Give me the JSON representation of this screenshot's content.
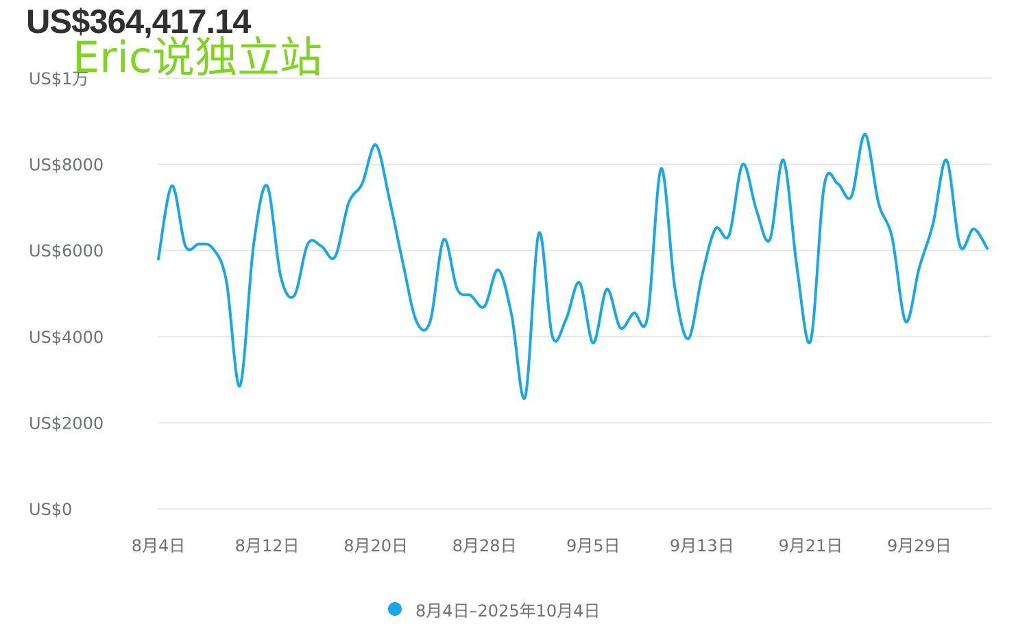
{
  "summary": {
    "total": "US$364,417.14"
  },
  "watermark": "Eric说独立站",
  "legend": {
    "label": "8月4日–2025年10月4日"
  },
  "colors": {
    "series": "#1aa7e8",
    "grid": "#e6e7e9",
    "watermark": "#7fd321",
    "text": "#6d7175"
  },
  "chart_data": {
    "type": "line",
    "title": "",
    "xlabel": "",
    "ylabel": "",
    "ylim": [
      0,
      10000
    ],
    "y_ticks": [
      {
        "value": 0,
        "label": "US$0"
      },
      {
        "value": 2000,
        "label": "US$2000"
      },
      {
        "value": 4000,
        "label": "US$4000"
      },
      {
        "value": 6000,
        "label": "US$6000"
      },
      {
        "value": 8000,
        "label": "US$8000"
      },
      {
        "value": 10000,
        "label": "US$1万"
      }
    ],
    "x_ticks": [
      {
        "index": 0,
        "label": "8月4日"
      },
      {
        "index": 8,
        "label": "8月12日"
      },
      {
        "index": 16,
        "label": "8月20日"
      },
      {
        "index": 24,
        "label": "8月28日"
      },
      {
        "index": 32,
        "label": "9月5日"
      },
      {
        "index": 40,
        "label": "9月13日"
      },
      {
        "index": 48,
        "label": "9月21日"
      },
      {
        "index": 56,
        "label": "9月29日"
      }
    ],
    "grid": true,
    "legend_position": "bottom-center",
    "series": [
      {
        "name": "8月4日–2025年10月4日",
        "x": [
          "2025-08-04",
          "2025-08-05",
          "2025-08-06",
          "2025-08-07",
          "2025-08-08",
          "2025-08-09",
          "2025-08-10",
          "2025-08-11",
          "2025-08-12",
          "2025-08-13",
          "2025-08-14",
          "2025-08-15",
          "2025-08-16",
          "2025-08-17",
          "2025-08-18",
          "2025-08-19",
          "2025-08-20",
          "2025-08-21",
          "2025-08-22",
          "2025-08-23",
          "2025-08-24",
          "2025-08-25",
          "2025-08-26",
          "2025-08-27",
          "2025-08-28",
          "2025-08-29",
          "2025-08-30",
          "2025-08-31",
          "2025-09-01",
          "2025-09-02",
          "2025-09-03",
          "2025-09-04",
          "2025-09-05",
          "2025-09-06",
          "2025-09-07",
          "2025-09-08",
          "2025-09-09",
          "2025-09-10",
          "2025-09-11",
          "2025-09-12",
          "2025-09-13",
          "2025-09-14",
          "2025-09-15",
          "2025-09-16",
          "2025-09-17",
          "2025-09-18",
          "2025-09-19",
          "2025-09-20",
          "2025-09-21",
          "2025-09-22",
          "2025-09-23",
          "2025-09-24",
          "2025-09-25",
          "2025-09-26",
          "2025-09-27",
          "2025-09-28",
          "2025-09-29",
          "2025-09-30",
          "2025-10-01",
          "2025-10-02",
          "2025-10-03",
          "2025-10-04"
        ],
        "values": [
          5800,
          7500,
          6100,
          6150,
          6050,
          5300,
          2850,
          6100,
          7500,
          5400,
          4950,
          6150,
          6100,
          5850,
          7100,
          7550,
          8450,
          7200,
          5700,
          4350,
          4350,
          6250,
          5100,
          4950,
          4700,
          5550,
          4500,
          2600,
          6400,
          4000,
          4400,
          5250,
          3850,
          5100,
          4200,
          4550,
          4450,
          7900,
          5150,
          3950,
          5400,
          6500,
          6350,
          8000,
          6950,
          6250,
          8100,
          5600,
          3900,
          7500,
          7550,
          7250,
          8700,
          7100,
          6300,
          4350,
          5600,
          6600,
          8100,
          6100,
          6500,
          6050
        ]
      }
    ]
  }
}
